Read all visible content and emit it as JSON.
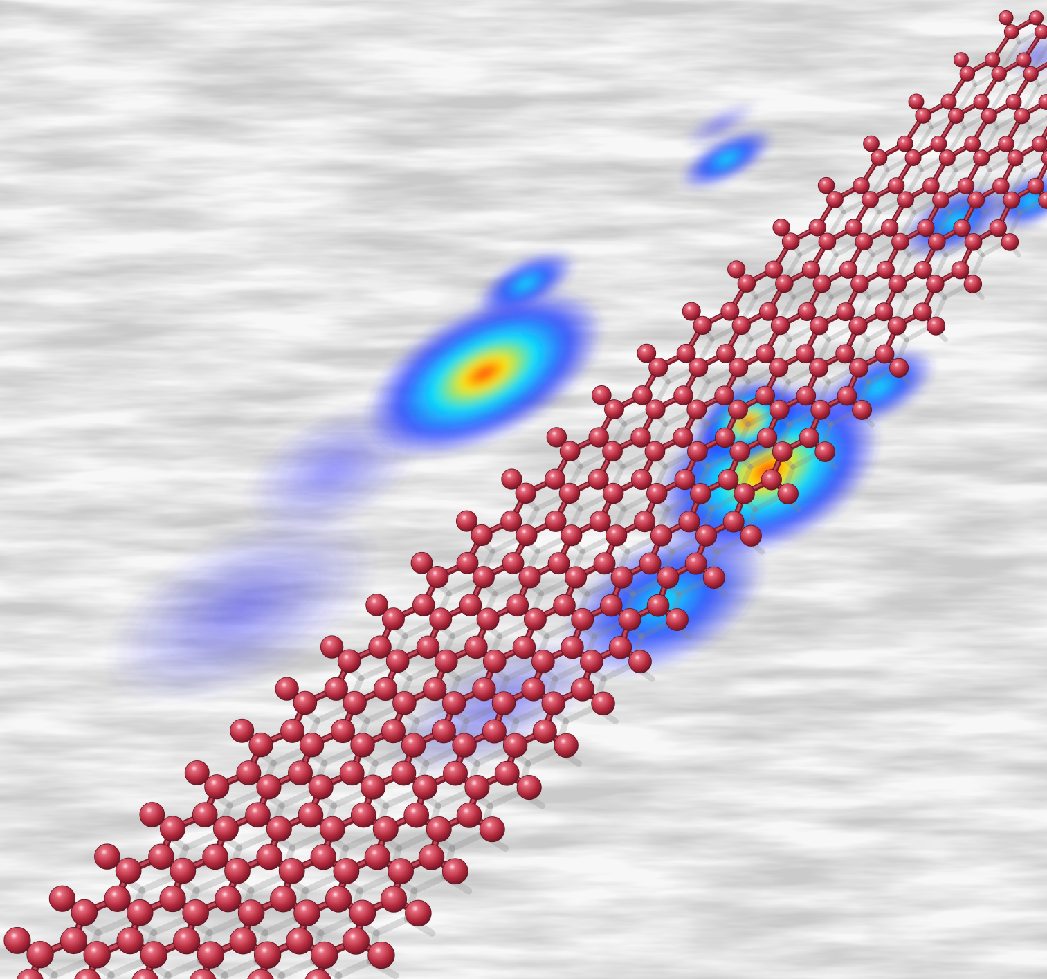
{
  "image": {
    "description_tags": [
      "graphene-nanoribbon",
      "heat-map-overlay",
      "marble-texture"
    ]
  },
  "colors": {
    "background": "#f6f6f6",
    "texture": "#9a9a9a",
    "atom": "#c23a4b",
    "atom_highlight": "#f7c4cc",
    "atom_dark": "#6e1a26",
    "bond": "#a82c3d",
    "heat_low": "#1133ff",
    "heat_mid": "#00e5ff",
    "heat_high": "#ffee00",
    "heat_peak": "#ff2200"
  }
}
